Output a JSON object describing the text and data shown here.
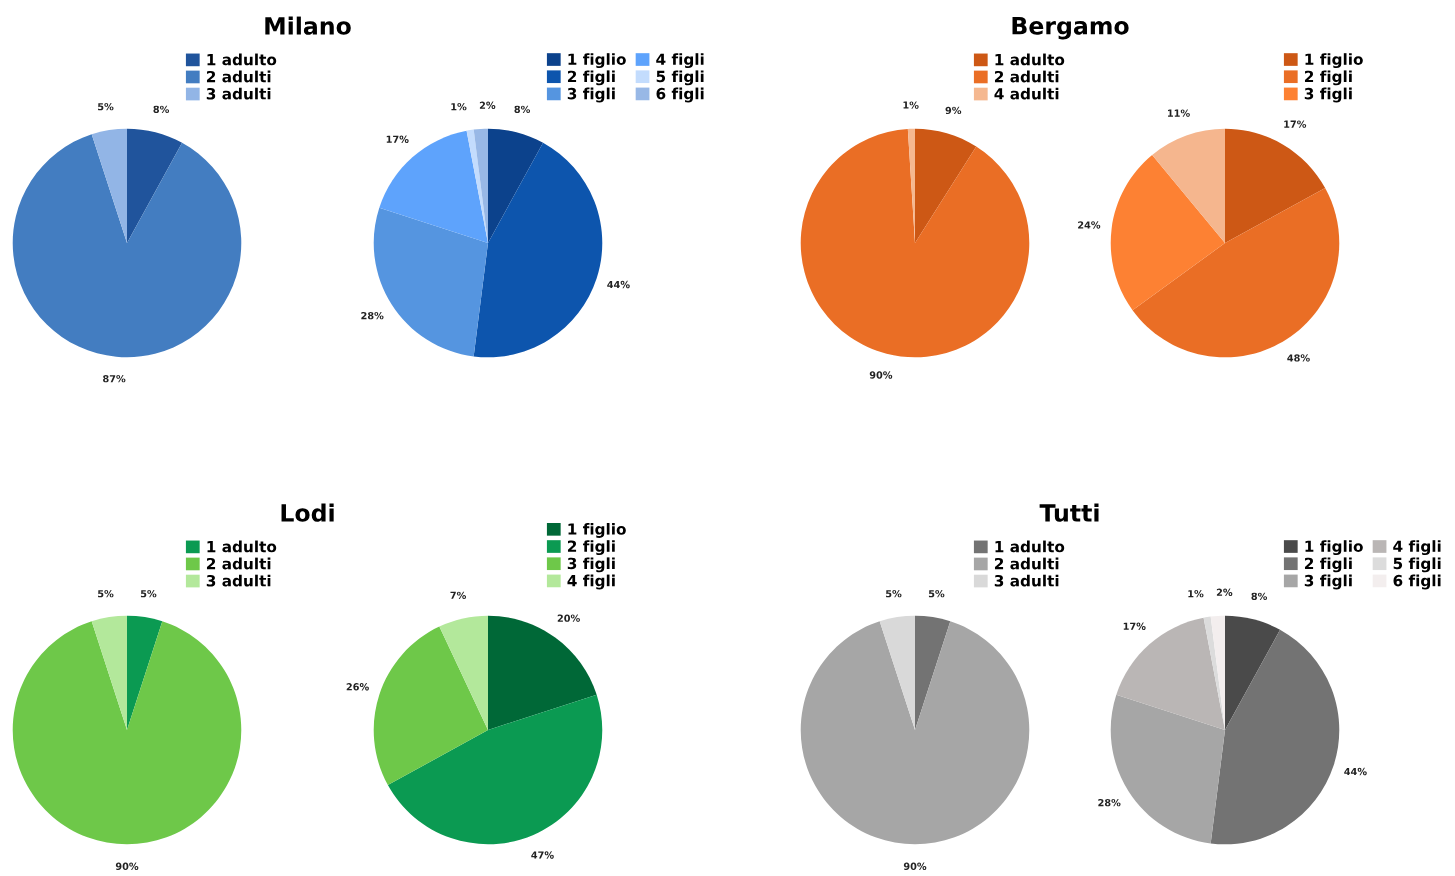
{
  "chart_data": [
    {
      "type": "pie",
      "title": "Milano",
      "categories": [
        "1 adulto",
        "2 adulti",
        "3 adulti"
      ],
      "values": [
        8,
        87,
        5
      ],
      "colors": [
        "#20549c",
        "#437dc1",
        "#92b5e6"
      ],
      "value_labels": [
        "8%",
        "87%",
        "5%"
      ],
      "legend": "top right"
    },
    {
      "type": "pie",
      "categories": [
        "1 figlio",
        "2 figli",
        "3 figli",
        "4 figli",
        "5 figli",
        "6 figli"
      ],
      "values": [
        8,
        44,
        28,
        17,
        1,
        2
      ],
      "colors": [
        "#0c428c",
        "#0d55ad",
        "#5595e0",
        "#5ea3fc",
        "#c3dcfd",
        "#98b8e6"
      ],
      "value_labels": [
        "8%",
        "44%",
        "28%",
        "17%",
        "1%",
        "2%"
      ],
      "legend": "top right"
    },
    {
      "type": "pie",
      "title": "Bergamo",
      "categories": [
        "1 adulto",
        "2 adulti",
        "4 adulti"
      ],
      "values": [
        9,
        90,
        1
      ],
      "colors": [
        "#cd5815",
        "#ea6e25",
        "#f5b890"
      ],
      "value_labels": [
        "9%",
        "90%",
        "1%"
      ],
      "legend": "top right"
    },
    {
      "type": "pie",
      "categories": [
        "1 figlio",
        "2 figli",
        "3 figli",
        null
      ],
      "values": [
        17,
        48,
        24,
        11
      ],
      "colors": [
        "#cd5815",
        "#ea6e25",
        "#fd8133",
        "#f5b68e"
      ],
      "value_labels": [
        "17%",
        "48%",
        "24%",
        "11%"
      ],
      "legend": "top right"
    },
    {
      "type": "pie",
      "title": "Lodi",
      "categories": [
        "1 adulto",
        "2 adulti",
        "3 adulti"
      ],
      "values": [
        5,
        90,
        5
      ],
      "colors": [
        "#0b9a52",
        "#6ec849",
        "#b3e89b"
      ],
      "value_labels": [
        "5%",
        "90%",
        "5%"
      ],
      "legend": "top right"
    },
    {
      "type": "pie",
      "categories": [
        "1 figlio",
        "2 figli",
        "3 figli",
        "4 figli"
      ],
      "values": [
        20,
        47,
        26,
        7
      ],
      "colors": [
        "#006837",
        "#0b9a52",
        "#6ec849",
        "#b3e89b"
      ],
      "value_labels": [
        "20%",
        "47%",
        "26%",
        "7%"
      ],
      "legend": "top right"
    },
    {
      "type": "pie",
      "title": "Tutti",
      "categories": [
        "1 adulto",
        "2 adulti",
        "3 adulti"
      ],
      "values": [
        5,
        90,
        5
      ],
      "colors": [
        "#737373",
        "#a6a6a6",
        "#d9d9d9"
      ],
      "value_labels": [
        "5%",
        "90%",
        "5%"
      ],
      "legend": "top right"
    },
    {
      "type": "pie",
      "categories": [
        "1 figlio",
        "2 figli",
        "3 figli",
        "4 figli",
        "5 figli",
        "6 figli"
      ],
      "values": [
        8,
        44,
        28,
        17,
        1,
        2
      ],
      "colors": [
        "#4a4a4a",
        "#737373",
        "#a6a6a6",
        "#bab6b5",
        "#dcdcdc",
        "#f3eeee"
      ],
      "value_labels": [
        "8%",
        "44%",
        "28%",
        "17%",
        "1%",
        "2%"
      ],
      "legend": "top right"
    }
  ]
}
